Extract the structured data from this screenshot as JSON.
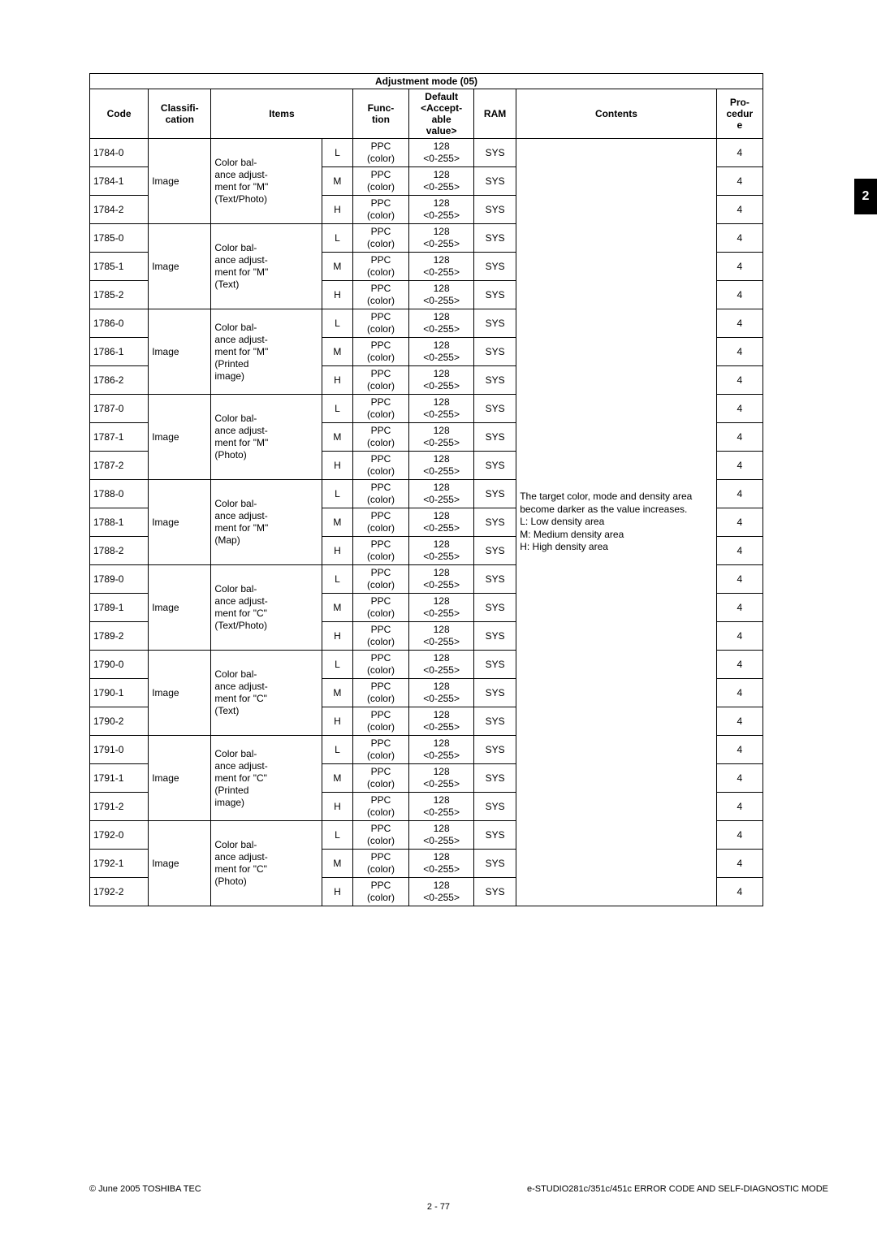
{
  "sideTab": "2",
  "tableTitle": "Adjustment mode (05)",
  "headers": {
    "code": "Code",
    "classification": "Classifi-\ncation",
    "items": "Items",
    "function": "Func-\ntion",
    "default": "Default\n<Accept-\nable\nvalue>",
    "ram": "RAM",
    "contents": "Contents",
    "procedure": "Pro-\ncedur\ne"
  },
  "contentsText": "The target color, mode and density area become darker as the value increases.\nL:  Low density area\nM: Medium density area\nH:  High density area",
  "groups": [
    {
      "codes": [
        "1784-0",
        "1784-1",
        "1784-2"
      ],
      "class": "Image",
      "items": "Color bal-\nance adjust-\nment for \"M\"\n(Text/Photo)",
      "subs": [
        "L",
        "M",
        "H"
      ]
    },
    {
      "codes": [
        "1785-0",
        "1785-1",
        "1785-2"
      ],
      "class": "Image",
      "items": "Color bal-\nance adjust-\nment for \"M\"\n(Text)",
      "subs": [
        "L",
        "M",
        "H"
      ]
    },
    {
      "codes": [
        "1786-0",
        "1786-1",
        "1786-2"
      ],
      "class": "Image",
      "items": "Color bal-\nance adjust-\nment for \"M\"\n(Printed\nimage)",
      "subs": [
        "L",
        "M",
        "H"
      ]
    },
    {
      "codes": [
        "1787-0",
        "1787-1",
        "1787-2"
      ],
      "class": "Image",
      "items": "Color bal-\nance adjust-\nment for \"M\"\n(Photo)",
      "subs": [
        "L",
        "M",
        "H"
      ]
    },
    {
      "codes": [
        "1788-0",
        "1788-1",
        "1788-2"
      ],
      "class": "Image",
      "items": "Color bal-\nance adjust-\nment for \"M\"\n(Map)",
      "subs": [
        "L",
        "M",
        "H"
      ]
    },
    {
      "codes": [
        "1789-0",
        "1789-1",
        "1789-2"
      ],
      "class": "Image",
      "items": "Color bal-\nance adjust-\nment for \"C\"\n(Text/Photo)",
      "subs": [
        "L",
        "M",
        "H"
      ]
    },
    {
      "codes": [
        "1790-0",
        "1790-1",
        "1790-2"
      ],
      "class": "Image",
      "items": "Color bal-\nance adjust-\nment for \"C\"\n(Text)",
      "subs": [
        "L",
        "M",
        "H"
      ]
    },
    {
      "codes": [
        "1791-0",
        "1791-1",
        "1791-2"
      ],
      "class": "Image",
      "items": "Color bal-\nance adjust-\nment for \"C\"\n(Printed\nimage)",
      "subs": [
        "L",
        "M",
        "H"
      ]
    },
    {
      "codes": [
        "1792-0",
        "1792-1",
        "1792-2"
      ],
      "class": "Image",
      "items": "Color bal-\nance adjust-\nment for \"C\"\n(Photo)",
      "subs": [
        "L",
        "M",
        "H"
      ]
    }
  ],
  "funcText": "PPC\n(color)",
  "defText": "128\n<0-255>",
  "ramText": "SYS",
  "procText": "4",
  "footer": {
    "left": "© June 2005 TOSHIBA TEC",
    "right": "e-STUDIO281c/351c/451c ERROR CODE AND SELF-DIAGNOSTIC MODE",
    "pageNum": "2 - 77"
  }
}
